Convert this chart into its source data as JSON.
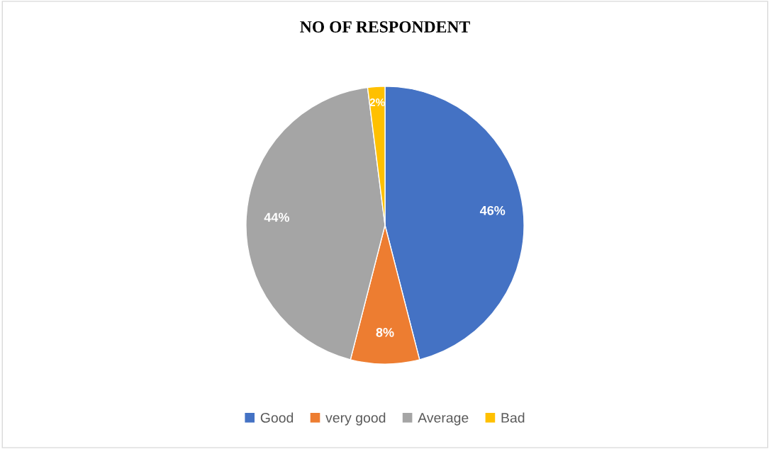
{
  "chart_data": {
    "type": "pie",
    "title": "NO OF RESPONDENT",
    "categories": [
      "Good",
      "very good",
      "Average",
      "Bad"
    ],
    "values": [
      46,
      8,
      44,
      2
    ],
    "colors": [
      "#4472c4",
      "#ed7d31",
      "#a5a5a5",
      "#ffc000"
    ],
    "value_labels": [
      "46%",
      "8%",
      "44%",
      "2%"
    ],
    "legend": "bottom"
  }
}
